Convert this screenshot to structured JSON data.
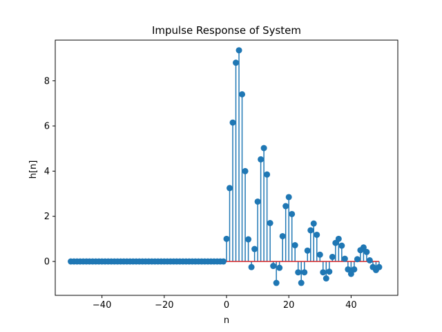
{
  "chart_data": {
    "type": "stem",
    "title": "Impulse Response of System",
    "xlabel": "n",
    "ylabel": "h[n]",
    "xlim": [
      -55,
      55
    ],
    "ylim": [
      -1.5,
      9.8
    ],
    "xticks": [
      -40,
      -20,
      0,
      20,
      40
    ],
    "xtick_labels": [
      "−40",
      "−20",
      "0",
      "20",
      "40"
    ],
    "yticks": [
      0,
      2,
      4,
      6,
      8
    ],
    "ytick_labels": [
      "0",
      "2",
      "4",
      "6",
      "8"
    ],
    "grid": false,
    "baseline": 0,
    "colors": {
      "stem": "#1f77b4",
      "marker": "#1f77b4",
      "baseline": "#d62728"
    },
    "x": [
      -50,
      -49,
      -48,
      -47,
      -46,
      -45,
      -44,
      -43,
      -42,
      -41,
      -40,
      -39,
      -38,
      -37,
      -36,
      -35,
      -34,
      -33,
      -32,
      -31,
      -30,
      -29,
      -28,
      -27,
      -26,
      -25,
      -24,
      -23,
      -22,
      -21,
      -20,
      -19,
      -18,
      -17,
      -16,
      -15,
      -14,
      -13,
      -12,
      -11,
      -10,
      -9,
      -8,
      -7,
      -6,
      -5,
      -4,
      -3,
      -2,
      -1,
      0,
      1,
      2,
      3,
      4,
      5,
      6,
      7,
      8,
      9,
      10,
      11,
      12,
      13,
      14,
      15,
      16,
      17,
      18,
      19,
      20,
      21,
      22,
      23,
      24,
      25,
      26,
      27,
      28,
      29,
      30,
      31,
      32,
      33,
      34,
      35,
      36,
      37,
      38,
      39,
      40,
      41,
      42,
      43,
      44,
      45,
      46,
      47,
      48,
      49
    ],
    "values": [
      0,
      0,
      0,
      0,
      0,
      0,
      0,
      0,
      0,
      0,
      0,
      0,
      0,
      0,
      0,
      0,
      0,
      0,
      0,
      0,
      0,
      0,
      0,
      0,
      0,
      0,
      0,
      0,
      0,
      0,
      0,
      0,
      0,
      0,
      0,
      0,
      0,
      0,
      0,
      0,
      0,
      0,
      0,
      0,
      0,
      0,
      0,
      0,
      0,
      0,
      1.0,
      3.25,
      6.15,
      8.8,
      9.35,
      7.4,
      4.0,
      0.98,
      -0.25,
      0.55,
      2.65,
      4.52,
      5.02,
      3.85,
      1.7,
      -0.2,
      -0.95,
      -0.28,
      1.12,
      2.45,
      2.85,
      2.1,
      0.72,
      -0.48,
      -0.95,
      -0.48,
      0.48,
      1.38,
      1.68,
      1.18,
      0.3,
      -0.48,
      -0.75,
      -0.45,
      0.2,
      0.82,
      1.0,
      0.7,
      0.12,
      -0.35,
      -0.55,
      -0.35,
      0.1,
      0.5,
      0.62,
      0.42,
      0.05,
      -0.25,
      -0.38,
      -0.25
    ]
  }
}
